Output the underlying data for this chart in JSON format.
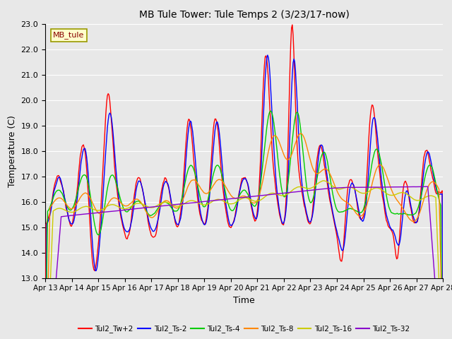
{
  "title": "MB Tule Tower: Tule Temps 2 (3/23/17-now)",
  "xlabel": "Time",
  "ylabel": "Temperature (C)",
  "ylim": [
    13.0,
    23.0
  ],
  "yticks": [
    13.0,
    14.0,
    15.0,
    16.0,
    17.0,
    18.0,
    19.0,
    20.0,
    21.0,
    22.0,
    23.0
  ],
  "xtick_labels": [
    "Apr 13",
    "Apr 14",
    "Apr 15",
    "Apr 16",
    "Apr 17",
    "Apr 18",
    "Apr 19",
    "Apr 20",
    "Apr 21",
    "Apr 22",
    "Apr 23",
    "Apr 24",
    "Apr 25",
    "Apr 26",
    "Apr 27",
    "Apr 28"
  ],
  "background_color": "#e8e8e8",
  "plot_bg_color": "#e8e8e8",
  "grid_color": "#ffffff",
  "legend_box_color": "#ffffcc",
  "legend_box_edge": "#999900",
  "legend_text_color": "#880000",
  "series_colors": {
    "Tul2_Tw+2": "#ff0000",
    "Tul2_Ts-2": "#0000ff",
    "Tul2_Ts-4": "#00cc00",
    "Tul2_Ts-8": "#ff8800",
    "Tul2_Ts-16": "#cccc00",
    "Tul2_Ts-32": "#8800cc"
  },
  "series_names": [
    "Tul2_Tw+2",
    "Tul2_Ts-2",
    "Tul2_Ts-4",
    "Tul2_Ts-8",
    "Tul2_Ts-16",
    "Tul2_Ts-32"
  ]
}
